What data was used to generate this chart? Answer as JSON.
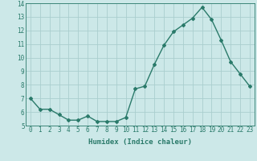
{
  "x": [
    0,
    1,
    2,
    3,
    4,
    5,
    6,
    7,
    8,
    9,
    10,
    11,
    12,
    13,
    14,
    15,
    16,
    17,
    18,
    19,
    20,
    21,
    22,
    23
  ],
  "y": [
    7.0,
    6.2,
    6.2,
    5.8,
    5.4,
    5.4,
    5.7,
    5.3,
    5.3,
    5.3,
    5.6,
    7.7,
    7.9,
    9.5,
    10.9,
    11.9,
    12.4,
    12.9,
    13.7,
    12.8,
    11.3,
    9.7,
    8.8,
    7.9
  ],
  "line_color": "#2a7a6a",
  "marker": "D",
  "markersize": 2.0,
  "linewidth": 1.0,
  "xlabel": "Humidex (Indice chaleur)",
  "xlim": [
    -0.5,
    23.5
  ],
  "ylim": [
    5,
    14
  ],
  "yticks": [
    5,
    6,
    7,
    8,
    9,
    10,
    11,
    12,
    13,
    14
  ],
  "xticks": [
    0,
    1,
    2,
    3,
    4,
    5,
    6,
    7,
    8,
    9,
    10,
    11,
    12,
    13,
    14,
    15,
    16,
    17,
    18,
    19,
    20,
    21,
    22,
    23
  ],
  "bg_color": "#cce8e8",
  "grid_color": "#aacece",
  "label_fontsize": 6.5,
  "tick_fontsize": 5.5
}
